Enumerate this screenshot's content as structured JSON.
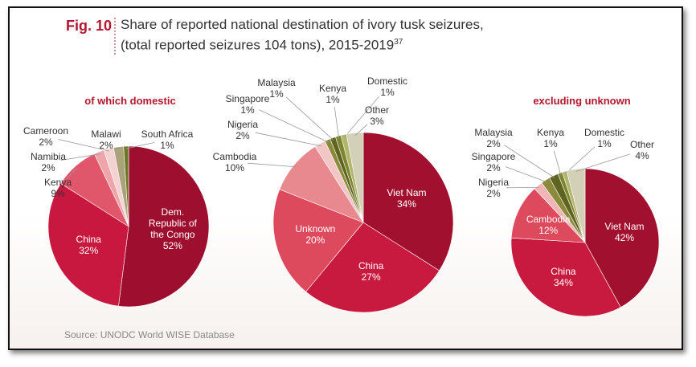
{
  "figure_label": "Fig. 10",
  "title_lines": [
    "Share of reported national destination of ivory tusk seizures,",
    "(total reported seizures 104 tons), 2015-2019"
  ],
  "title_note": "37",
  "source": "Source: UNODC World WISE Database",
  "chart_data": [
    {
      "type": "pie",
      "subtitle": "of which domestic",
      "categories": [
        "Dem. Republic of the Congo",
        "China",
        "Kenya",
        "Namibia",
        "Cameroon",
        "Malawi",
        "South Africa"
      ],
      "values": [
        52,
        32,
        9,
        2,
        2,
        2,
        1
      ],
      "value_labels": [
        "52%",
        "32%",
        "9%",
        "2%",
        "2%",
        "2%",
        "1%"
      ],
      "colors": [
        "#9e0f2f",
        "#c8183f",
        "#e0566a",
        "#eda5a9",
        "#f5d2d2",
        "#a9a27a",
        "#6f7526"
      ]
    },
    {
      "type": "pie",
      "categories": [
        "Viet Nam",
        "China",
        "Unknown",
        "Cambodia",
        "Nigeria",
        "Singapore",
        "Malaysia",
        "Kenya",
        "Domestic",
        "Other"
      ],
      "values": [
        34,
        27,
        20,
        10,
        2,
        1,
        1,
        1,
        1,
        3
      ],
      "value_labels": [
        "34%",
        "27%",
        "20%",
        "10%",
        "2%",
        "1%",
        "1%",
        "1%",
        "1%",
        "3%"
      ],
      "colors": [
        "#a1112f",
        "#c81a3f",
        "#dd4a5e",
        "#e8898f",
        "#f3c6c6",
        "#8a8a3a",
        "#5f6420",
        "#7d8530",
        "#b3b56c",
        "#d3d0b8"
      ]
    },
    {
      "type": "pie",
      "subtitle": "excluding unknown",
      "categories": [
        "Viet Nam",
        "China",
        "Cambodia",
        "Nigeria",
        "Singapore",
        "Malaysia",
        "Kenya",
        "Domestic",
        "Other"
      ],
      "values": [
        42,
        34,
        12,
        2,
        2,
        2,
        1,
        1,
        4
      ],
      "value_labels": [
        "42%",
        "34%",
        "12%",
        "2%",
        "2%",
        "2%",
        "1%",
        "1%",
        "4%"
      ],
      "colors": [
        "#a1112f",
        "#c81a3f",
        "#dd4a5e",
        "#f0b5b6",
        "#8a8a3a",
        "#5f6420",
        "#7d8530",
        "#b3b56c",
        "#d3d0b8"
      ]
    }
  ]
}
